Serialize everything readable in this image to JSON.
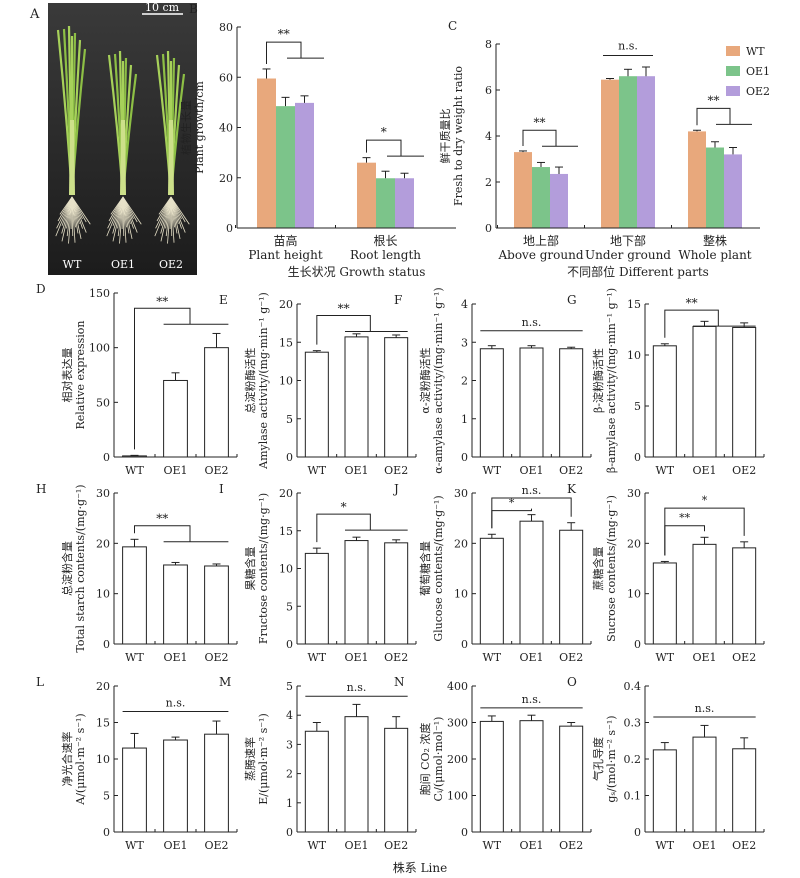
{
  "footer": {
    "xlabel": "株系 Line"
  },
  "photo": {
    "panel_label": "A",
    "scale_bar": "10 cm",
    "labels": [
      "WT",
      "OE1",
      "OE2"
    ]
  },
  "chart_data": [
    {
      "id": "B",
      "type": "bar",
      "panel_label": "B",
      "categories": [
        [
          "苗高",
          "Plant height"
        ],
        [
          "根长",
          "Root length"
        ]
      ],
      "series": [
        {
          "name": "WT",
          "values": [
            59.5,
            26.0
          ],
          "errors": [
            3.8,
            2.0
          ],
          "color": "#E8A87C"
        },
        {
          "name": "OE1",
          "values": [
            48.5,
            19.8
          ],
          "errors": [
            3.5,
            2.8
          ],
          "color": "#7CC48A"
        },
        {
          "name": "OE2",
          "values": [
            49.8,
            19.8
          ],
          "errors": [
            2.8,
            2.0
          ],
          "color": "#B39DDB"
        }
      ],
      "ylabel": [
        "植物生长量",
        "Plant growth/cm"
      ],
      "xlabel": "生长状况 Growth status",
      "ylim": [
        0,
        80
      ],
      "yticks": [
        0,
        20,
        40,
        60,
        80
      ],
      "annotations": [
        {
          "group": 0,
          "text": "**",
          "y": 74
        },
        {
          "group": 1,
          "text": "*",
          "y": 35
        }
      ]
    },
    {
      "id": "C",
      "type": "bar",
      "panel_label": "C",
      "categories": [
        [
          "地上部",
          "Above ground"
        ],
        [
          "地下部",
          "Under ground"
        ],
        [
          "整株",
          "Whole plant"
        ]
      ],
      "series": [
        {
          "name": "WT",
          "values": [
            3.3,
            6.45,
            4.2
          ],
          "errors": [
            0.05,
            0.05,
            0.05
          ],
          "color": "#E8A87C"
        },
        {
          "name": "OE1",
          "values": [
            2.65,
            6.6,
            3.5
          ],
          "errors": [
            0.2,
            0.3,
            0.25
          ],
          "color": "#7CC48A"
        },
        {
          "name": "OE2",
          "values": [
            2.35,
            6.6,
            3.2
          ],
          "errors": [
            0.3,
            0.4,
            0.3
          ],
          "color": "#B39DDB"
        }
      ],
      "ylabel": [
        "鲜干质量比",
        "Fresh to dry weight ratio"
      ],
      "xlabel": "不同部位 Different parts",
      "ylim": [
        0,
        8
      ],
      "yticks": [
        0,
        2,
        4,
        6,
        8
      ],
      "legend": {
        "position": "top-right",
        "entries": [
          "WT",
          "OE1",
          "OE2"
        ]
      },
      "annotations": [
        {
          "group": 0,
          "text": "**",
          "y": 4.25
        },
        {
          "group": 1,
          "text": "n.s.",
          "y": 7.5
        },
        {
          "group": 2,
          "text": "**",
          "y": 5.2
        }
      ]
    },
    {
      "id": "D",
      "type": "bar",
      "panel_label": "D",
      "categories": [
        "WT",
        "OE1",
        "OE2"
      ],
      "values": [
        1,
        70,
        100
      ],
      "errors": [
        0.5,
        7,
        13
      ],
      "ylabel": [
        "相对表达量",
        "Relative expression"
      ],
      "ylim": [
        0,
        150
      ],
      "yticks": [
        0,
        50,
        100,
        150
      ],
      "annotation": {
        "text": "**",
        "y": 136,
        "type": "wt-vs-both"
      }
    },
    {
      "id": "E",
      "type": "bar",
      "panel_label": "E",
      "categories": [
        "WT",
        "OE1",
        "OE2"
      ],
      "values": [
        13.7,
        15.7,
        15.6
      ],
      "errors": [
        0.2,
        0.4,
        0.35
      ],
      "ylabel": [
        "总淀粉酶活性",
        "Amylase activity/(mg·min⁻¹ g⁻¹)"
      ],
      "ylim": [
        0,
        20
      ],
      "yticks": [
        0,
        5,
        10,
        15,
        20
      ],
      "annotation": {
        "text": "**",
        "y": 18.5,
        "type": "wt-vs-both"
      }
    },
    {
      "id": "F",
      "type": "bar",
      "panel_label": "F",
      "categories": [
        "WT",
        "OE1",
        "OE2"
      ],
      "values": [
        2.83,
        2.85,
        2.83
      ],
      "errors": [
        0.08,
        0.06,
        0.04
      ],
      "ylabel": [
        "α-淀粉酶活性",
        "α-amylase activity/(mg·min⁻¹ g⁻¹)"
      ],
      "ylim": [
        0,
        4
      ],
      "yticks": [
        0,
        1,
        2,
        3,
        4
      ],
      "annotation": {
        "text": "n.s.",
        "y": 3.3,
        "type": "flat"
      }
    },
    {
      "id": "G",
      "type": "bar",
      "panel_label": "G",
      "categories": [
        "WT",
        "OE1",
        "OE2"
      ],
      "values": [
        10.9,
        12.8,
        12.7
      ],
      "errors": [
        0.2,
        0.5,
        0.45
      ],
      "ylabel": [
        "β-淀粉酶活性",
        "β-amylase activity/(mg·min⁻¹ g⁻¹)"
      ],
      "ylim": [
        0,
        15
      ],
      "yticks": [
        0,
        5,
        10,
        15
      ],
      "annotation": {
        "text": "**",
        "y": 14.4,
        "type": "wt-vs-both"
      }
    },
    {
      "id": "H",
      "type": "bar",
      "panel_label": "H",
      "categories": [
        "WT",
        "OE1",
        "OE2"
      ],
      "values": [
        19.3,
        15.7,
        15.5
      ],
      "errors": [
        1.5,
        0.5,
        0.4
      ],
      "ylabel": [
        "总淀粉含量",
        "Total starch contents/(mg·g⁻¹)"
      ],
      "ylim": [
        0,
        30
      ],
      "yticks": [
        0,
        10,
        20,
        30
      ],
      "annotation": {
        "text": "**",
        "y": 23.5,
        "type": "wt-vs-both"
      }
    },
    {
      "id": "I",
      "type": "bar",
      "panel_label": "I",
      "categories": [
        "WT",
        "OE1",
        "OE2"
      ],
      "values": [
        12.0,
        13.7,
        13.4
      ],
      "errors": [
        0.7,
        0.45,
        0.4
      ],
      "ylabel": [
        "果糖含量",
        "Fructose contents/(mg·g⁻¹)"
      ],
      "ylim": [
        0,
        20
      ],
      "yticks": [
        0,
        5,
        10,
        15,
        20
      ],
      "annotation": {
        "text": "*",
        "y": 17.2,
        "type": "wt-vs-both"
      }
    },
    {
      "id": "J",
      "type": "bar",
      "panel_label": "J",
      "categories": [
        "WT",
        "OE1",
        "OE2"
      ],
      "values": [
        21.0,
        24.4,
        22.6
      ],
      "errors": [
        0.8,
        1.3,
        1.5
      ],
      "ylabel": [
        "葡萄糖含量",
        "Glucose contents/(mg·g⁻¹)"
      ],
      "ylim": [
        0,
        30
      ],
      "yticks": [
        0,
        10,
        20,
        30
      ],
      "annotation": {
        "type": "pairwise",
        "pairs": [
          {
            "from": 0,
            "to": 1,
            "text": "*",
            "y": 26.5
          },
          {
            "from": 0,
            "to": 2,
            "text": "n.s.",
            "y": 29
          }
        ]
      }
    },
    {
      "id": "K",
      "type": "bar",
      "panel_label": "K",
      "categories": [
        "WT",
        "OE1",
        "OE2"
      ],
      "values": [
        16.1,
        19.8,
        19.1
      ],
      "errors": [
        0.3,
        1.4,
        1.2
      ],
      "ylabel": [
        "蔗糖含量",
        "Sucrose contents/(mg·g⁻¹)"
      ],
      "ylim": [
        0,
        30
      ],
      "yticks": [
        0,
        10,
        20,
        30
      ],
      "annotation": {
        "type": "pairwise",
        "pairs": [
          {
            "from": 0,
            "to": 1,
            "text": "**",
            "y": 23.5
          },
          {
            "from": 0,
            "to": 2,
            "text": "*",
            "y": 27
          }
        ]
      }
    },
    {
      "id": "L",
      "type": "bar",
      "panel_label": "L",
      "categories": [
        "WT",
        "OE1",
        "OE2"
      ],
      "values": [
        11.5,
        12.6,
        13.4
      ],
      "errors": [
        2.0,
        0.4,
        1.8
      ],
      "ylabel": [
        "净光合速率",
        "A/(μmol·m⁻² s⁻¹)"
      ],
      "ylim": [
        0,
        20
      ],
      "yticks": [
        0,
        5,
        10,
        15,
        20
      ],
      "annotation": {
        "text": "n.s.",
        "y": 16.5,
        "type": "flat"
      }
    },
    {
      "id": "M",
      "type": "bar",
      "panel_label": "M",
      "categories": [
        "WT",
        "OE1",
        "OE2"
      ],
      "values": [
        3.45,
        3.95,
        3.55
      ],
      "errors": [
        0.3,
        0.42,
        0.4
      ],
      "ylabel": [
        "蒸腾速率",
        "E/(μmol·m⁻² s⁻¹)"
      ],
      "ylim": [
        0,
        5
      ],
      "yticks": [
        0,
        1,
        2,
        3,
        4,
        5
      ],
      "annotation": {
        "text": "n.s.",
        "y": 4.65,
        "type": "flat"
      }
    },
    {
      "id": "N",
      "type": "bar",
      "panel_label": "N",
      "categories": [
        "WT",
        "OE1",
        "OE2"
      ],
      "values": [
        303,
        305,
        290
      ],
      "errors": [
        15,
        15,
        10
      ],
      "ylabel": [
        "胞间 CO₂ 浓度",
        "Cᵢ/(μmol·mol⁻¹)"
      ],
      "ylim": [
        0,
        400
      ],
      "yticks": [
        0,
        100,
        200,
        300,
        400
      ],
      "annotation": {
        "text": "n.s.",
        "y": 340,
        "type": "flat"
      }
    },
    {
      "id": "O",
      "type": "bar",
      "panel_label": "O",
      "categories": [
        "WT",
        "OE1",
        "OE2"
      ],
      "values": [
        0.225,
        0.26,
        0.228
      ],
      "errors": [
        0.02,
        0.032,
        0.03
      ],
      "ylabel": [
        "气孔导度",
        "gₛ/(mol·m⁻² s⁻¹)"
      ],
      "ylim": [
        0,
        0.4
      ],
      "yticks": [
        0,
        0.1,
        0.2,
        0.3,
        0.4
      ],
      "annotation": {
        "text": "n.s.",
        "y": 0.315,
        "type": "flat"
      }
    }
  ]
}
